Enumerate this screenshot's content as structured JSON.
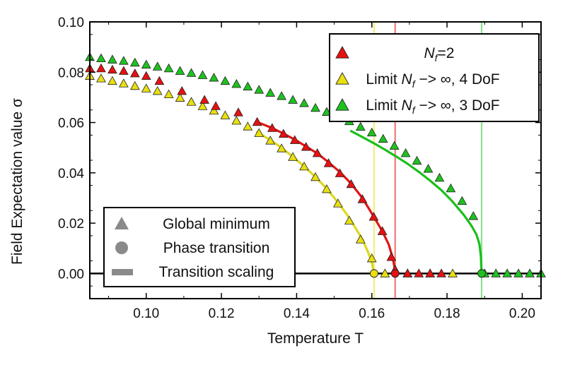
{
  "chart_data": {
    "type": "scatter",
    "xlabel": "Temperature T",
    "ylabel": "Field Expectation value σ",
    "xlim": [
      0.085,
      0.205
    ],
    "ylim": [
      -0.01,
      0.1
    ],
    "xticks": [
      "0.10",
      "0.12",
      "0.14",
      "0.16",
      "0.18",
      "0.20"
    ],
    "yticks": [
      "0.00",
      "0.02",
      "0.04",
      "0.06",
      "0.08",
      "0.10"
    ],
    "xtick_values": [
      0.1,
      0.12,
      0.14,
      0.16,
      0.18,
      0.2
    ],
    "ytick_values": [
      0.0,
      0.02,
      0.04,
      0.06,
      0.08,
      0.1
    ],
    "grid": false,
    "series": [
      {
        "legend_main": "N",
        "legend_sub": "f",
        "legend_rest": "=2",
        "color": "#e81010",
        "line_color": "#e01515",
        "vline_color": "#f07a7a",
        "critical_T": 0.1662,
        "points": [
          [
            0.085,
            0.0815
          ],
          [
            0.088,
            0.0815
          ],
          [
            0.091,
            0.081
          ],
          [
            0.094,
            0.0805
          ],
          [
            0.097,
            0.0795
          ],
          [
            0.1,
            0.0785
          ],
          [
            0.1035,
            0.0765
          ],
          [
            0.1095,
            0.0725
          ],
          [
            0.1155,
            0.069
          ],
          [
            0.1185,
            0.0665
          ],
          [
            0.1245,
            0.064
          ],
          [
            0.1295,
            0.0602
          ],
          [
            0.1335,
            0.0578
          ],
          [
            0.1365,
            0.0555
          ],
          [
            0.1395,
            0.053
          ],
          [
            0.1425,
            0.0503
          ],
          [
            0.1455,
            0.0478
          ],
          [
            0.1485,
            0.0438
          ],
          [
            0.1515,
            0.0398
          ],
          [
            0.1545,
            0.0355
          ],
          [
            0.1575,
            0.0295
          ],
          [
            0.1605,
            0.0225
          ],
          [
            0.1628,
            0.0168
          ],
          [
            0.1652,
            0.0065
          ],
          [
            0.1662,
            0.0015
          ],
          [
            0.1695,
            0.0
          ],
          [
            0.1725,
            0.0
          ],
          [
            0.1755,
            0.0
          ],
          [
            0.1785,
            0.0
          ]
        ],
        "transition_point": [
          0.1662,
          0.0
        ],
        "scaling": [
          [
            0.1295,
            0.0602
          ],
          [
            0.1335,
            0.0578
          ],
          [
            0.1365,
            0.0556
          ],
          [
            0.1395,
            0.0532
          ],
          [
            0.1425,
            0.0505
          ],
          [
            0.1455,
            0.0477
          ],
          [
            0.1485,
            0.0442
          ],
          [
            0.1515,
            0.0403
          ],
          [
            0.1545,
            0.0357
          ],
          [
            0.1575,
            0.03
          ],
          [
            0.1605,
            0.0226
          ],
          [
            0.1628,
            0.0168
          ],
          [
            0.1645,
            0.0115
          ],
          [
            0.1655,
            0.0065
          ],
          [
            0.166,
            0.0028
          ],
          [
            0.1662,
            0.0
          ]
        ]
      },
      {
        "legend_main": "Limit N",
        "legend_sub": "f",
        "legend_rest": " −> ∞, 4 DoF",
        "color": "#e8e010",
        "line_color": "#dcd81a",
        "vline_color": "#f2ee80",
        "critical_T": 0.1606,
        "points": [
          [
            0.085,
            0.0785
          ],
          [
            0.088,
            0.0775
          ],
          [
            0.091,
            0.0765
          ],
          [
            0.094,
            0.0755
          ],
          [
            0.097,
            0.0745
          ],
          [
            0.1,
            0.0735
          ],
          [
            0.103,
            0.0725
          ],
          [
            0.106,
            0.0712
          ],
          [
            0.109,
            0.0698
          ],
          [
            0.112,
            0.0682
          ],
          [
            0.115,
            0.0665
          ],
          [
            0.118,
            0.0647
          ],
          [
            0.121,
            0.0628
          ],
          [
            0.124,
            0.0607
          ],
          [
            0.127,
            0.0584
          ],
          [
            0.13,
            0.0558
          ],
          [
            0.133,
            0.0528
          ],
          [
            0.136,
            0.0497
          ],
          [
            0.139,
            0.0463
          ],
          [
            0.142,
            0.0425
          ],
          [
            0.145,
            0.0383
          ],
          [
            0.148,
            0.0335
          ],
          [
            0.151,
            0.0278
          ],
          [
            0.154,
            0.021
          ],
          [
            0.157,
            0.0135
          ],
          [
            0.16,
            0.006
          ],
          [
            0.1635,
            0.0
          ],
          [
            0.1695,
            0.0
          ],
          [
            0.1755,
            0.0
          ],
          [
            0.1815,
            0.0
          ]
        ],
        "transition_point": [
          0.1606,
          0.0
        ],
        "scaling": [
          [
            0.1295,
            0.0562
          ],
          [
            0.1325,
            0.0535
          ],
          [
            0.1355,
            0.0505
          ],
          [
            0.1385,
            0.047
          ],
          [
            0.1415,
            0.0432
          ],
          [
            0.1445,
            0.0391
          ],
          [
            0.1475,
            0.0345
          ],
          [
            0.1505,
            0.0292
          ],
          [
            0.1535,
            0.0232
          ],
          [
            0.1555,
            0.0185
          ],
          [
            0.1575,
            0.0135
          ],
          [
            0.159,
            0.0085
          ],
          [
            0.16,
            0.0045
          ],
          [
            0.1606,
            0.0
          ]
        ]
      },
      {
        "legend_main": "Limit N",
        "legend_sub": "f",
        "legend_rest": " −> ∞, 3 DoF",
        "color": "#1ec21e",
        "line_color": "#1bbf1b",
        "vline_color": "#8ee38e",
        "critical_T": 0.1892,
        "points": [
          [
            0.085,
            0.086
          ],
          [
            0.088,
            0.0855
          ],
          [
            0.091,
            0.085
          ],
          [
            0.094,
            0.0845
          ],
          [
            0.097,
            0.0838
          ],
          [
            0.1,
            0.083
          ],
          [
            0.103,
            0.0822
          ],
          [
            0.106,
            0.0815
          ],
          [
            0.109,
            0.0805
          ],
          [
            0.112,
            0.0797
          ],
          [
            0.115,
            0.0788
          ],
          [
            0.118,
            0.0778
          ],
          [
            0.121,
            0.0765
          ],
          [
            0.124,
            0.0753
          ],
          [
            0.127,
            0.0743
          ],
          [
            0.13,
            0.073
          ],
          [
            0.133,
            0.0718
          ],
          [
            0.136,
            0.0705
          ],
          [
            0.139,
            0.069
          ],
          [
            0.142,
            0.0677
          ],
          [
            0.145,
            0.0658
          ],
          [
            0.148,
            0.0642
          ],
          [
            0.151,
            0.0625
          ],
          [
            0.154,
            0.0605
          ],
          [
            0.157,
            0.0583
          ],
          [
            0.16,
            0.056
          ],
          [
            0.163,
            0.0535
          ],
          [
            0.166,
            0.0507
          ],
          [
            0.169,
            0.0478
          ],
          [
            0.172,
            0.0448
          ],
          [
            0.175,
            0.0416
          ],
          [
            0.178,
            0.038
          ],
          [
            0.181,
            0.0338
          ],
          [
            0.184,
            0.0288
          ],
          [
            0.187,
            0.0228
          ],
          [
            0.19,
            0.0
          ],
          [
            0.193,
            0.0
          ],
          [
            0.196,
            0.0
          ],
          [
            0.199,
            0.0
          ],
          [
            0.202,
            0.0
          ],
          [
            0.205,
            0.0
          ]
        ],
        "transition_point": [
          0.1892,
          0.0
        ],
        "scaling": [
          [
            0.1545,
            0.0566
          ],
          [
            0.1575,
            0.0542
          ],
          [
            0.1605,
            0.0518
          ],
          [
            0.1635,
            0.0492
          ],
          [
            0.1665,
            0.0465
          ],
          [
            0.1695,
            0.0436
          ],
          [
            0.1725,
            0.0404
          ],
          [
            0.1755,
            0.0369
          ],
          [
            0.1785,
            0.0331
          ],
          [
            0.1815,
            0.0285
          ],
          [
            0.1845,
            0.0232
          ],
          [
            0.1865,
            0.019
          ],
          [
            0.1878,
            0.0155
          ],
          [
            0.1886,
            0.0118
          ],
          [
            0.189,
            0.007
          ],
          [
            0.1892,
            0.0
          ]
        ]
      }
    ],
    "marker_legend": [
      {
        "label": "Global minimum",
        "symbol": "triangle"
      },
      {
        "label": "Phase transition",
        "symbol": "circle"
      },
      {
        "label": "Transition scaling",
        "symbol": "line"
      }
    ]
  }
}
